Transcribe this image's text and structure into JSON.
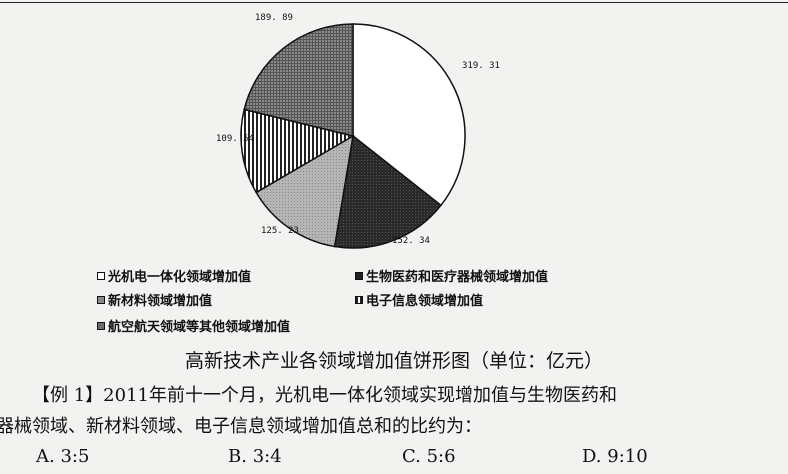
{
  "chart_data": {
    "type": "pie",
    "title": "高新技术产业各领域增加值饼形图（单位：亿元）",
    "slices": [
      {
        "label": "光机电一体化领域增加值",
        "value": 319.31,
        "value_text": "319. 31",
        "fill": "#ffffff"
      },
      {
        "label": "生物医药和医疗器械领域增加值",
        "value": 152.34,
        "value_text": "152. 34",
        "fill": "#2e2e2e"
      },
      {
        "label": "新材料领域增加值",
        "value": 125.23,
        "value_text": "125. 23",
        "fill": "#a8a8a8"
      },
      {
        "label": "电子信息领域增加值",
        "value": 109.54,
        "value_text": "109. 54",
        "fill": "#5a5a5a"
      },
      {
        "label": "航空航天领域等其他领域增加值",
        "value": 189.89,
        "value_text": "189. 89",
        "fill": "#6e6e6e"
      }
    ],
    "legend_position": "bottom"
  },
  "legend": [
    {
      "marker": "□",
      "text": "光机电一体化领域增加值"
    },
    {
      "marker": "■",
      "text": "生物医药和医疗器械领域增加值"
    },
    {
      "marker": "▩",
      "text": "新材料领域增加值"
    },
    {
      "marker": "▥",
      "text": "电子信息领域增加值"
    },
    {
      "marker": "▦",
      "text": "航空航天领域等其他领域增加值"
    }
  ],
  "question": {
    "line1": "【例 1】2011年前十一个月，光机电一体化领域实现增加值与生物医药和",
    "line2": "器械领域、新材料领域、电子信息领域增加值总和的比约为：",
    "options": [
      {
        "letter": "A.",
        "text": "3:5"
      },
      {
        "letter": "B.",
        "text": "3:4"
      },
      {
        "letter": "C.",
        "text": "5:6"
      },
      {
        "letter": "D.",
        "text": "9:10"
      }
    ]
  }
}
